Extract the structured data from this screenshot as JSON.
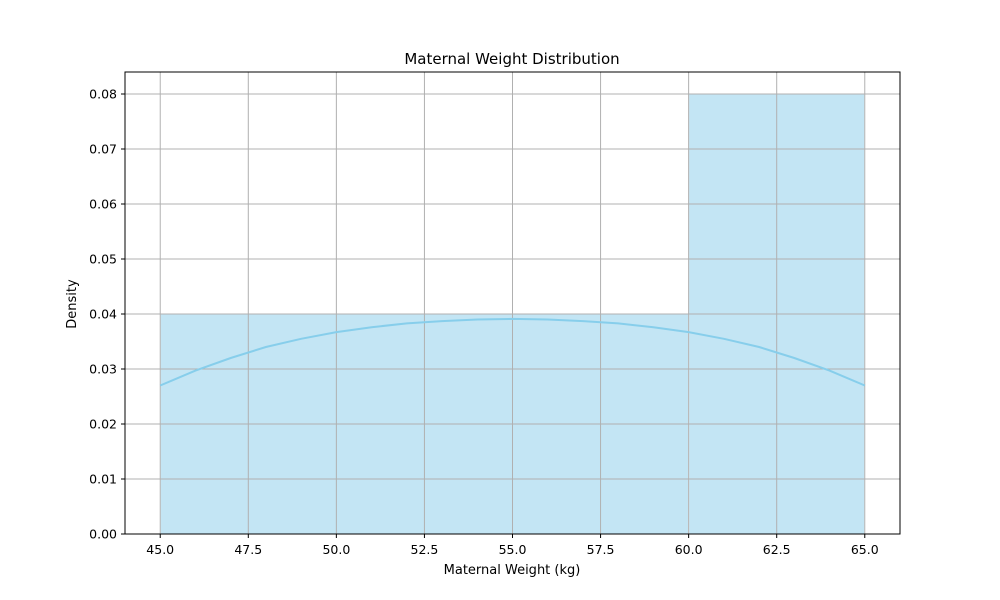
{
  "chart_data": {
    "type": "bar",
    "title": "Maternal Weight Distribution",
    "xlabel": "Maternal Weight (kg)",
    "ylabel": "Density",
    "xlim": [
      44.0,
      66.0
    ],
    "ylim": [
      0,
      0.084
    ],
    "x_ticks": [
      45.0,
      47.5,
      50.0,
      52.5,
      55.0,
      57.5,
      60.0,
      62.5,
      65.0
    ],
    "x_tick_labels": [
      "45.0",
      "47.5",
      "50.0",
      "52.5",
      "55.0",
      "57.5",
      "60.0",
      "62.5",
      "65.0"
    ],
    "y_ticks": [
      0,
      0.01,
      0.02,
      0.03,
      0.04,
      0.05,
      0.06,
      0.07,
      0.08
    ],
    "y_tick_labels": [
      "0.00",
      "0.01",
      "0.02",
      "0.03",
      "0.04",
      "0.05",
      "0.06",
      "0.07",
      "0.08"
    ],
    "grid": true,
    "bins": [
      {
        "start": 45.0,
        "end": 55.0,
        "value": 0.04
      },
      {
        "start": 55.0,
        "end": 60.0,
        "value": 0.04
      },
      {
        "start": 60.0,
        "end": 65.0,
        "value": 0.08
      }
    ],
    "kde": {
      "x": [
        45.0,
        46.0,
        47.0,
        48.0,
        49.0,
        50.0,
        51.0,
        52.0,
        53.0,
        54.0,
        55.0,
        56.0,
        57.0,
        58.0,
        59.0,
        60.0,
        61.0,
        62.0,
        63.0,
        64.0,
        65.0
      ],
      "y": [
        0.027,
        0.0297,
        0.032,
        0.034,
        0.0355,
        0.0367,
        0.0376,
        0.0383,
        0.0387,
        0.039,
        0.0391,
        0.039,
        0.0387,
        0.0383,
        0.0376,
        0.0367,
        0.0355,
        0.034,
        0.032,
        0.0297,
        0.027
      ]
    },
    "colors": {
      "bar_fill": "#c3e5f4",
      "bar_edge": "#ffffff",
      "kde_line": "#87ceeb",
      "grid": "#b0b0b0",
      "axes": "#000000"
    }
  }
}
